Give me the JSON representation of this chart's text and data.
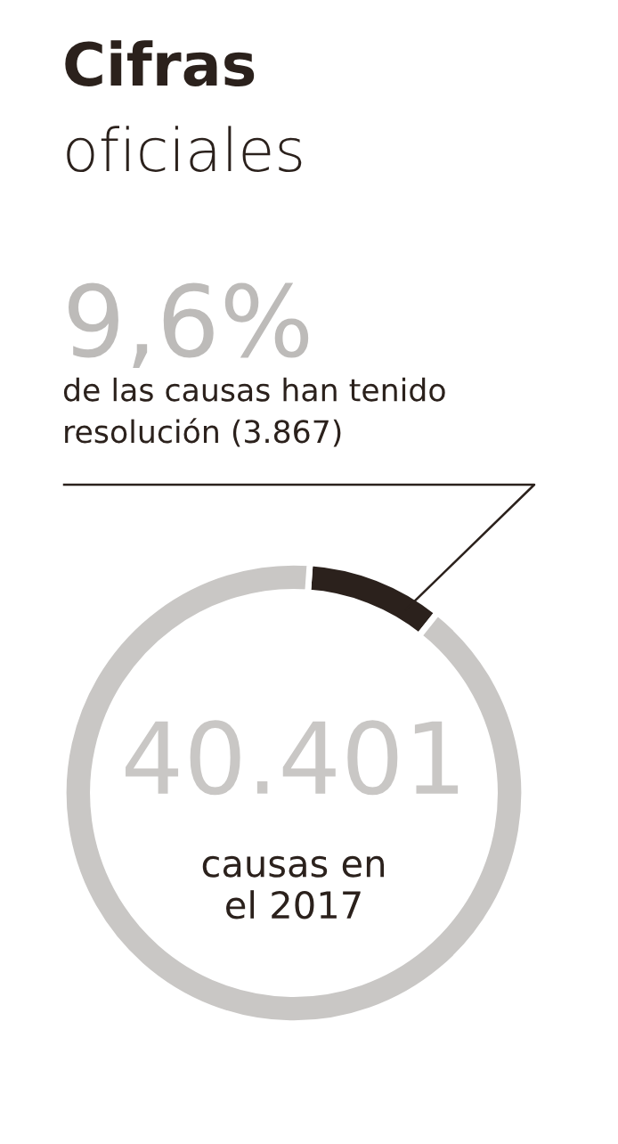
{
  "chart_data": {
    "type": "donut",
    "title": "Cifras",
    "subtitle": "oficiales",
    "categories": [
      null,
      null
    ],
    "values": [
      9.6,
      90.4
    ],
    "colors": [
      "#2b211c",
      "#c9c7c5"
    ],
    "annotations": [
      "9,6%",
      "de las causas han tenido\nresolución (3.867)",
      "40.401",
      "causas en\nel 2017"
    ]
  }
}
